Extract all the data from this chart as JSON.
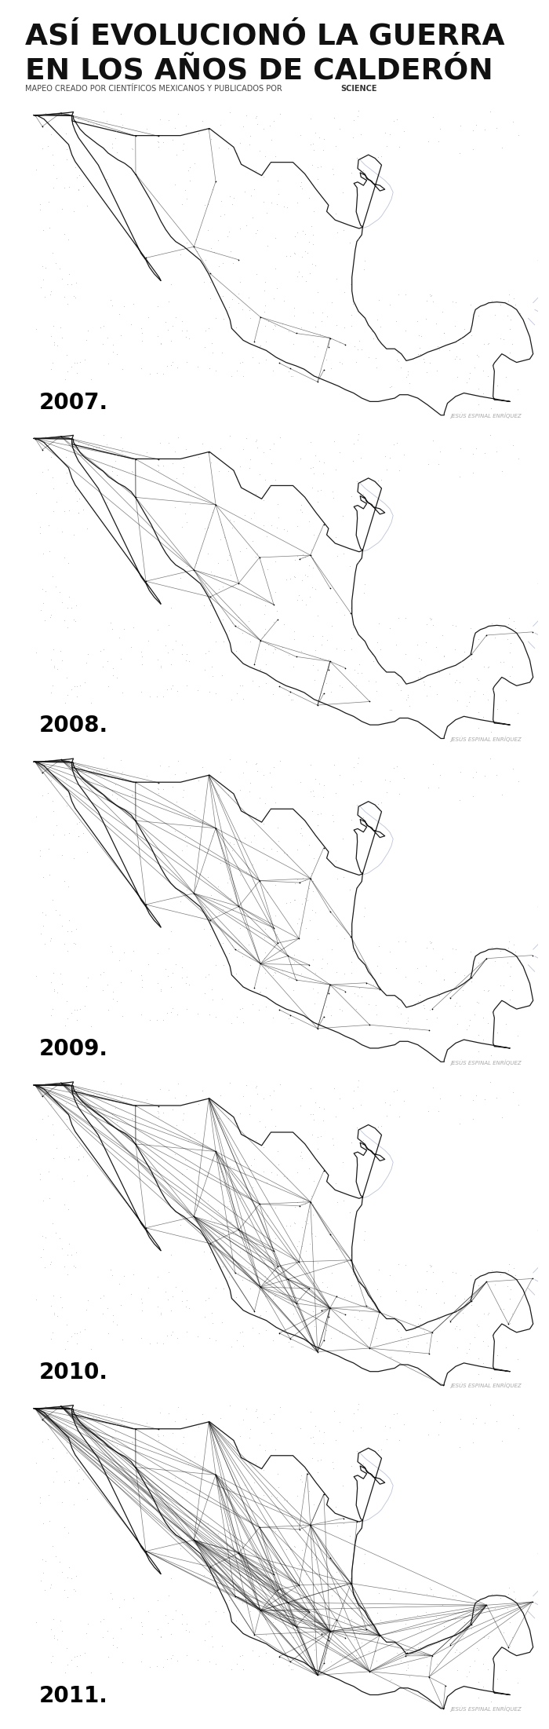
{
  "title_line1": "ASÍ EVOLUCIONÓ LA GUERRA",
  "title_line2": "EN LOS AÑOS DE CALDERÓN",
  "subtitle_normal": "MAPEO CREADO POR CIENTÍFICOS MEXICANOS Y PUBLICADOS POR ",
  "subtitle_bold": "SCIENCE",
  "credit": "JESÚS ESPINAL ENRÍQUEZ",
  "years": [
    2007,
    2008,
    2009,
    2010,
    2011
  ],
  "background_color": "#ffffff",
  "map_outline_color": "#1a1a1a",
  "water_color": "#aab4cc",
  "dot_color": "#999999",
  "line_color": "#111111",
  "title_color": "#111111",
  "credit_color": "#aaaaaa",
  "figwidth": 7.0,
  "figheight": 22.02,
  "dpi": 100,
  "xlim": [
    -118.5,
    -86.5
  ],
  "ylim": [
    14.2,
    33.2
  ]
}
